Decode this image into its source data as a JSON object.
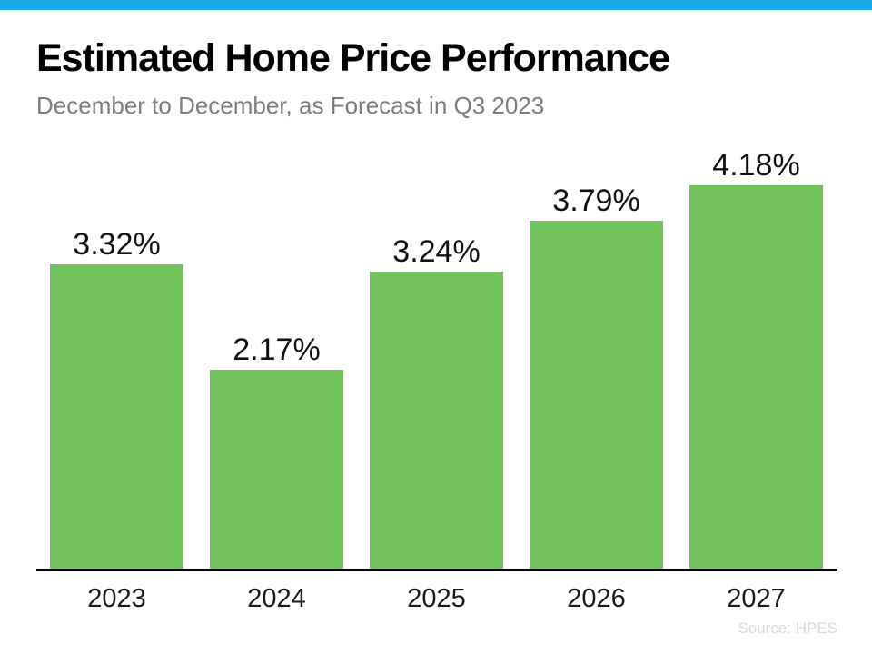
{
  "header": {
    "title": "Estimated Home Price Performance",
    "subtitle": "December to December, as Forecast in Q3 2023"
  },
  "footer": {
    "source": "Source: HPES"
  },
  "colors": {
    "accent_bar": "#1BA9EC",
    "bar_fill": "#72C25C",
    "axis_line": "#000000",
    "title_text": "#000000",
    "subtitle_text": "#7C7C7C",
    "value_label_text": "#111111",
    "year_label_text": "#1A1A1A",
    "source_text": "#D9D9D9"
  },
  "chart_data": {
    "type": "bar",
    "title": "Estimated Home Price Performance",
    "subtitle": "December to December, as Forecast in Q3 2023",
    "categories": [
      "2023",
      "2024",
      "2025",
      "2026",
      "2027"
    ],
    "values": [
      3.32,
      2.17,
      3.24,
      3.79,
      4.18
    ],
    "value_labels": [
      "3.32%",
      "2.17%",
      "3.24%",
      "3.79%",
      "4.18%"
    ],
    "unit": "percent",
    "xlabel": "",
    "ylabel": "",
    "ylim": [
      0,
      4.6
    ],
    "grid": false,
    "legend": false,
    "bar_color": "#72C25C",
    "layout_hints": {
      "data_labels": "above bars",
      "axes": "x baseline only, no y-axis ticks",
      "legend_position": "none"
    },
    "source": "Source: HPES"
  }
}
